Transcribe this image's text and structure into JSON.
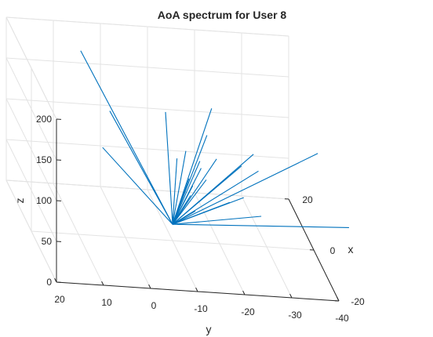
{
  "chart_data": {
    "type": "line3d",
    "title": "AoA spectrum for User 8",
    "xlabel": "x",
    "ylabel": "y",
    "zlabel": "z",
    "xlim": [
      -20,
      20
    ],
    "ylim": [
      -40,
      20
    ],
    "zlim": [
      0,
      200
    ],
    "x_ticks": [
      20,
      0,
      -20
    ],
    "y_ticks": [
      20,
      10,
      0,
      -10,
      -20,
      -30,
      -40
    ],
    "z_ticks": [
      0,
      50,
      100,
      150,
      200
    ],
    "grid": true,
    "series_color": "#0072BD",
    "origin": [
      0,
      -10,
      20
    ],
    "ray_endpoints": [
      [
        18.1,
        4.7,
        170.7
      ],
      [
        10.3,
        0.6,
        122.8
      ],
      [
        10.8,
        2.0,
        76.0
      ],
      [
        13.5,
        -12.1,
        116.4
      ],
      [
        5.5,
        -12.4,
        84.6
      ],
      [
        4.1,
        -14.6,
        65.1
      ],
      [
        6.3,
        -14.5,
        92.0
      ],
      [
        7.5,
        -20.3,
        142.7
      ],
      [
        0.2,
        -13.9,
        56.3
      ],
      [
        -1.9,
        -14.3,
        43.7
      ],
      [
        7.1,
        -19.2,
        110.6
      ],
      [
        4.6,
        -17.3,
        77.3
      ],
      [
        2.4,
        -17.8,
        70.1
      ],
      [
        4.5,
        -17.0,
        86.1
      ],
      [
        -0.2,
        -22.1,
        52.2
      ],
      [
        2.1,
        -25.2,
        90.8
      ],
      [
        7.3,
        -21.3,
        81.7
      ],
      [
        -0.1,
        -25.1,
        58.9
      ],
      [
        -5.8,
        -27.3,
        54.6
      ],
      [
        -14.6,
        -43.6,
        74.5
      ],
      [
        6.4,
        -28.9,
        93.2
      ],
      [
        0.2,
        -28.3,
        91.7
      ],
      [
        -8.1,
        -38.7,
        143.3
      ],
      [
        0.8,
        -14.5,
        66.6
      ]
    ]
  }
}
